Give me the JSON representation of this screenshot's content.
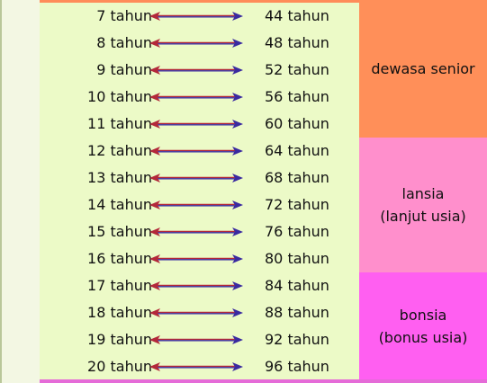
{
  "rows": [
    {
      "child_age": "7 tahun",
      "human_age": "44 tahun"
    },
    {
      "child_age": "8 tahun",
      "human_age": "48 tahun"
    },
    {
      "child_age": "9 tahun",
      "human_age": "52 tahun"
    },
    {
      "child_age": "10 tahun",
      "human_age": "56 tahun"
    },
    {
      "child_age": "11 tahun",
      "human_age": "60 tahun"
    },
    {
      "child_age": "12 tahun",
      "human_age": "64 tahun"
    },
    {
      "child_age": "13 tahun",
      "human_age": "68 tahun"
    },
    {
      "child_age": "14 tahun",
      "human_age": "72 tahun"
    },
    {
      "child_age": "15 tahun",
      "human_age": "76 tahun"
    },
    {
      "child_age": "16 tahun",
      "human_age": "80 tahun"
    },
    {
      "child_age": "17 tahun",
      "human_age": "84 tahun"
    },
    {
      "child_age": "18 tahun",
      "human_age": "88 tahun"
    },
    {
      "child_age": "19 tahun",
      "human_age": "92 tahun"
    },
    {
      "child_age": "20 tahun",
      "human_age": "96 tahun"
    }
  ],
  "categories": [
    {
      "lines": [
        "dewasa senior"
      ],
      "color": "#ff8f59",
      "rows": 5
    },
    {
      "lines": [
        "lansia",
        "(lanjut usia)"
      ],
      "color": "#ff8fcc",
      "rows": 5
    },
    {
      "lines": [
        "bonsia",
        "(bonus usia)"
      ],
      "color": "#ff5ff1",
      "rows": 4
    }
  ],
  "arrow": {
    "icon": "double-headed-arrow-icon",
    "left_color": "#b3283a",
    "right_color": "#3a2aa0"
  }
}
